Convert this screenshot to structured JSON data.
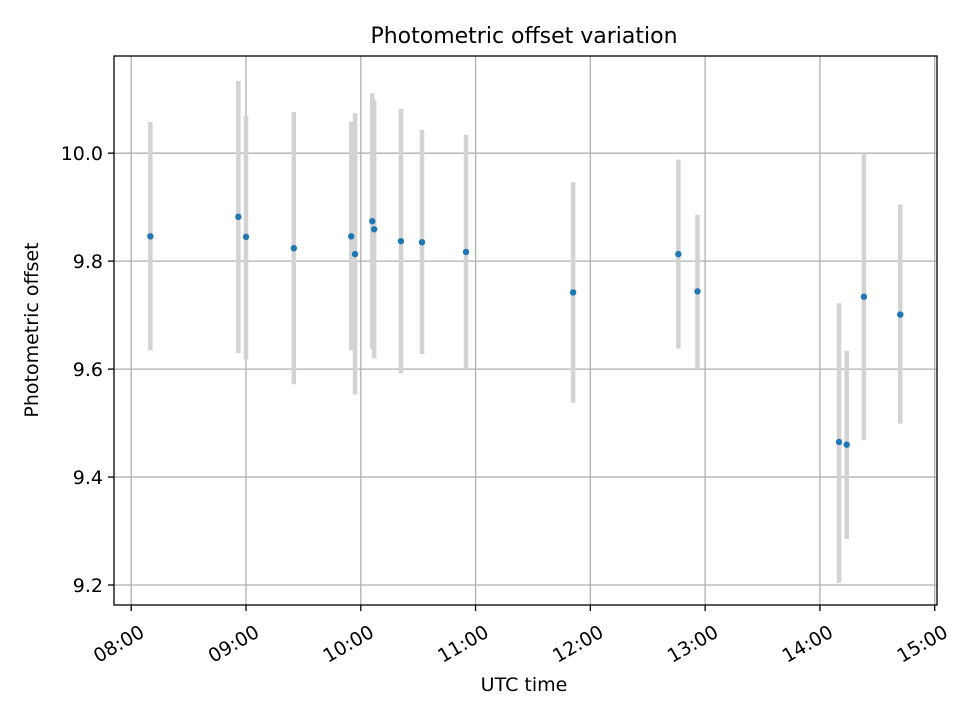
{
  "chart_data": {
    "type": "scatter",
    "title": "Photometric offset variation",
    "xlabel": "UTC time",
    "ylabel": "Photometric offset",
    "x_tick_labels": [
      "08:00",
      "09:00",
      "10:00",
      "11:00",
      "12:00",
      "13:00",
      "14:00",
      "15:00"
    ],
    "x_tick_values_hours": [
      8,
      9,
      10,
      11,
      12,
      13,
      14,
      15
    ],
    "y_tick_labels": [
      "9.2",
      "9.4",
      "9.6",
      "9.8",
      "10.0"
    ],
    "y_tick_values": [
      9.2,
      9.4,
      9.6,
      9.8,
      10.0
    ],
    "xlim_hours": [
      7.85,
      15.02
    ],
    "ylim": [
      9.163,
      10.18
    ],
    "grid": true,
    "marker_color": "#1f77b4",
    "errorbar_color": "#d3d3d3",
    "points": [
      {
        "time": "08:10",
        "y": 9.846,
        "ylow": 9.635,
        "yhigh": 10.058
      },
      {
        "time": "08:56",
        "y": 9.882,
        "ylow": 9.63,
        "yhigh": 10.134
      },
      {
        "time": "09:00",
        "y": 9.845,
        "ylow": 9.618,
        "yhigh": 10.07
      },
      {
        "time": "09:25",
        "y": 9.824,
        "ylow": 9.572,
        "yhigh": 10.076
      },
      {
        "time": "09:55",
        "y": 9.846,
        "ylow": 9.635,
        "yhigh": 10.058
      },
      {
        "time": "09:57",
        "y": 9.813,
        "ylow": 9.553,
        "yhigh": 10.074
      },
      {
        "time": "10:06",
        "y": 9.874,
        "ylow": 9.637,
        "yhigh": 10.111
      },
      {
        "time": "10:07",
        "y": 9.859,
        "ylow": 9.62,
        "yhigh": 10.098
      },
      {
        "time": "10:21",
        "y": 9.837,
        "ylow": 9.592,
        "yhigh": 10.082
      },
      {
        "time": "10:32",
        "y": 9.835,
        "ylow": 9.628,
        "yhigh": 10.043
      },
      {
        "time": "10:55",
        "y": 9.817,
        "ylow": 9.602,
        "yhigh": 10.034
      },
      {
        "time": "11:51",
        "y": 9.742,
        "ylow": 9.538,
        "yhigh": 9.946
      },
      {
        "time": "12:46",
        "y": 9.813,
        "ylow": 9.638,
        "yhigh": 9.988
      },
      {
        "time": "12:56",
        "y": 9.744,
        "ylow": 9.602,
        "yhigh": 9.886
      },
      {
        "time": "14:10",
        "y": 9.465,
        "ylow": 9.204,
        "yhigh": 9.722
      },
      {
        "time": "14:14",
        "y": 9.46,
        "ylow": 9.285,
        "yhigh": 9.634
      },
      {
        "time": "14:23",
        "y": 9.734,
        "ylow": 9.469,
        "yhigh": 10.0
      },
      {
        "time": "14:42",
        "y": 9.701,
        "ylow": 9.499,
        "yhigh": 9.905
      }
    ]
  }
}
